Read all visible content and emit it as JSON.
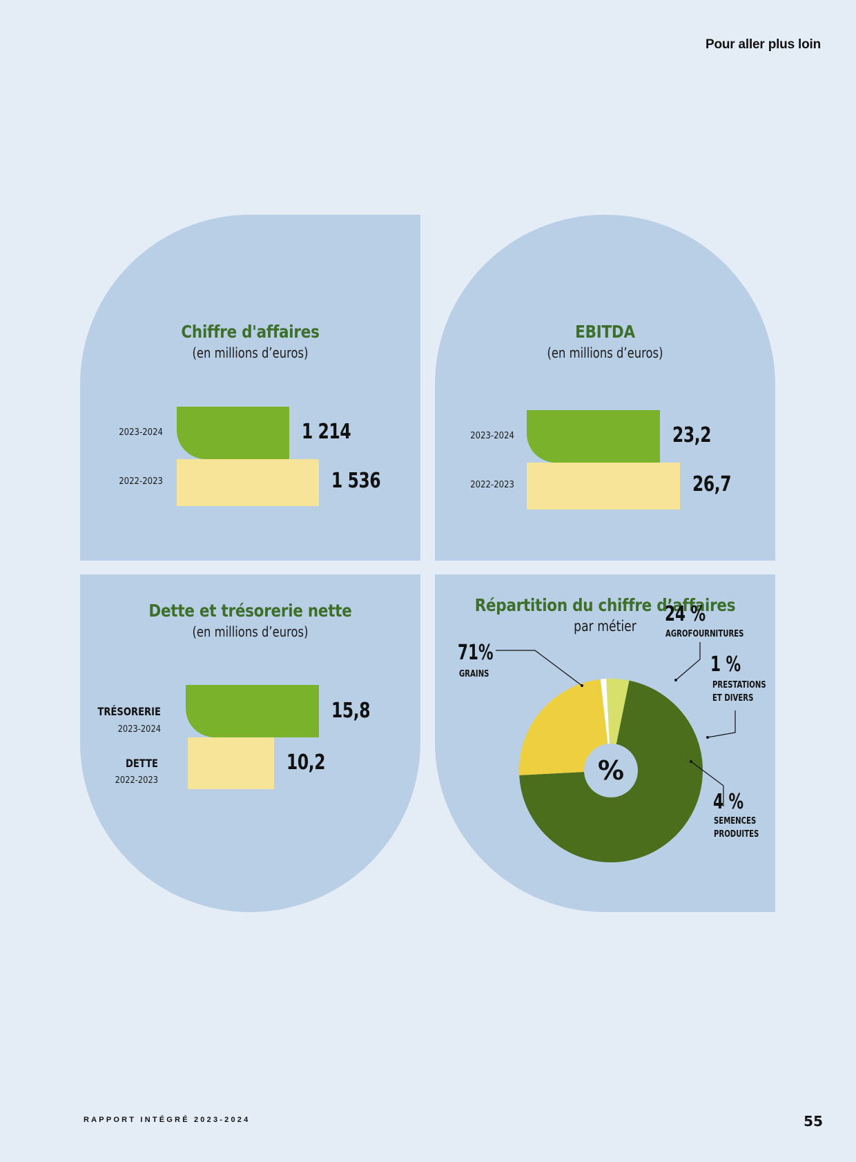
{
  "header": {
    "link": "Pour aller plus loin"
  },
  "footer": {
    "title": "RAPPORT INTÉGRÉ 2023-2024",
    "page_number": "55"
  },
  "colors": {
    "background": "#e4ecf6",
    "panel": "#b8cfe6",
    "title_green": "#3e6f2a",
    "bar_current": "#7ab22b",
    "bar_previous": "#f8e499"
  },
  "chart_data": [
    {
      "type": "bar",
      "orientation": "horizontal",
      "title": "Chiffre d'affaires",
      "subtitle": "(en millions d’euros)",
      "categories": [
        "2023-2024",
        "2022-2023"
      ],
      "values": [
        1214,
        1536
      ],
      "value_labels": [
        "1 214",
        "1 536"
      ]
    },
    {
      "type": "bar",
      "orientation": "horizontal",
      "title": "EBITDA",
      "subtitle": "(en millions d’euros)",
      "categories": [
        "2023-2024",
        "2022-2023"
      ],
      "values": [
        23.2,
        26.7
      ],
      "value_labels": [
        "23,2",
        "26,7"
      ]
    },
    {
      "type": "bar",
      "orientation": "horizontal",
      "title": "Dette et trésorerie nette",
      "subtitle": "(en millions d’euros)",
      "categories": [
        "TRÉSORERIE",
        "DETTE"
      ],
      "category_years": [
        "2023-2024",
        "2022-2023"
      ],
      "values": [
        15.8,
        10.2
      ],
      "value_labels": [
        "15,8",
        "10,2"
      ]
    },
    {
      "type": "pie",
      "title": "Répartition du chiffre d’affaires",
      "subtitle": "par métier",
      "center_label": "%",
      "slices": [
        {
          "label": "GRAINS",
          "pct_label": "71%",
          "value": 71,
          "color": "#4a6e1c"
        },
        {
          "label": "AGROFOURNITURES",
          "pct_label": "24 %",
          "value": 24,
          "color": "#eecf40"
        },
        {
          "label": "PRESTATIONS ET DIVERS",
          "pct_label": "1 %",
          "value": 1,
          "color": "#ffffff"
        },
        {
          "label": "SEMENCES PRODUITES",
          "pct_label": "4 %",
          "value": 4,
          "color": "#d6e06a"
        }
      ],
      "label_lines": {
        "PRESTATIONS ET DIVERS": [
          "PRESTATIONS",
          "ET DIVERS"
        ],
        "SEMENCES PRODUITES": [
          "SEMENCES",
          "PRODUITES"
        ]
      }
    }
  ]
}
